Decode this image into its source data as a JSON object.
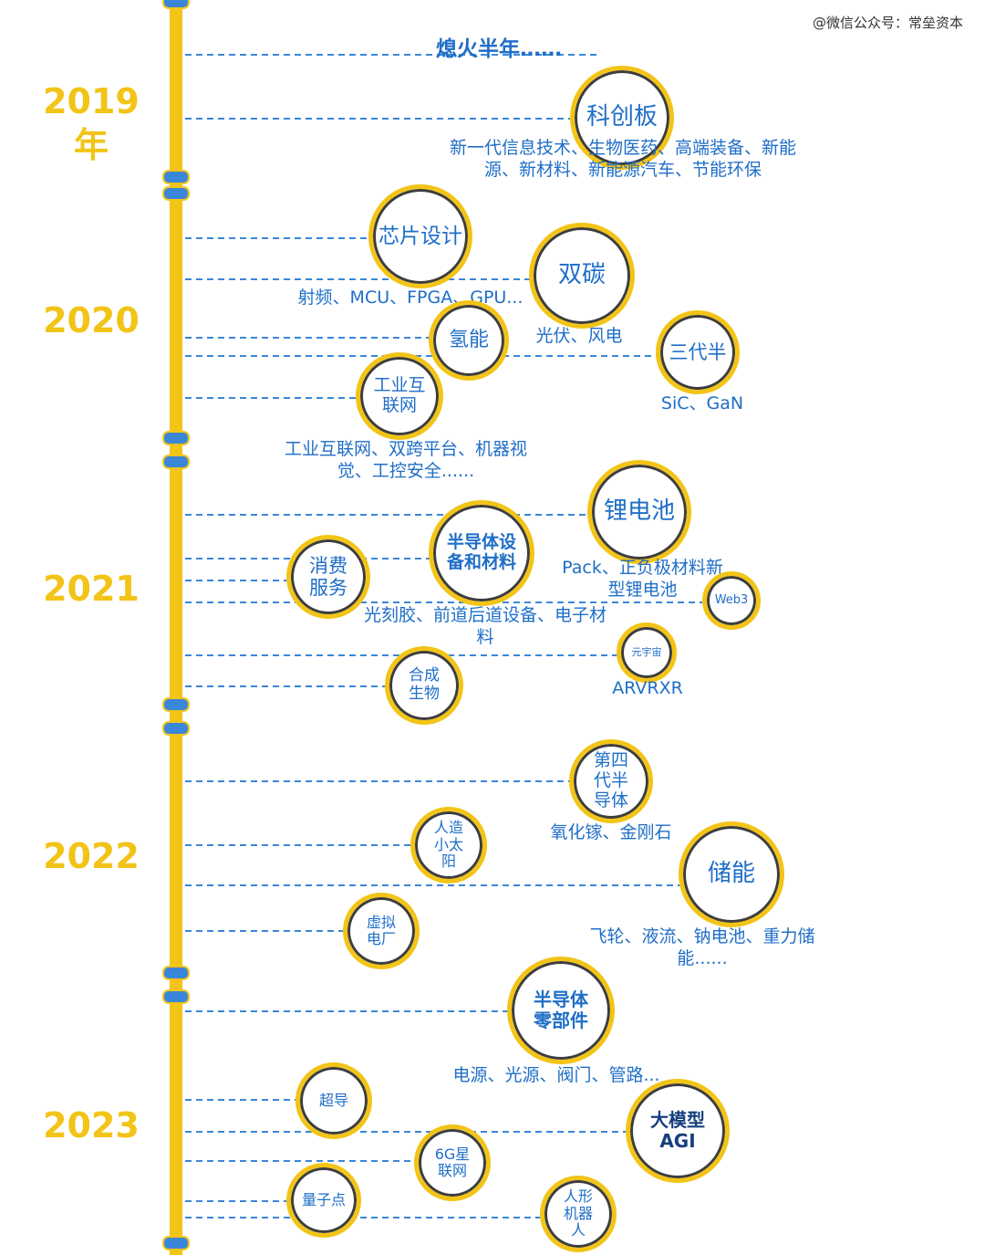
{
  "watermark": "@微信公众号：常垒资本",
  "title": "熄火半年……",
  "years": [
    "2019",
    "年",
    "2020",
    "2021",
    "2022",
    "2023"
  ],
  "circles": {
    "kechuangban": "科创板",
    "chip_design": "芯片设计",
    "double_carbon": "双碳",
    "hydrogen": "氢能",
    "third_gen": "三代半",
    "industrial_net": "工业互联网",
    "li_battery": "锂电池",
    "semi_equip": "半导体设备和材料",
    "consumer_service": "消费服务",
    "web3": "Web3",
    "metaverse": "元宇宙",
    "synbio": "合成生物",
    "fourth_gen": "第四代半导体",
    "artificial_sun": "人造小太阳",
    "energy_storage": "储能",
    "virtual_plant": "虚拟电厂",
    "semi_parts": "半导体零部件",
    "superconduct": "超导",
    "large_model": "大模型AGI",
    "six_g": "6G星联网",
    "quantum_dot": "量子点",
    "humanoid": "人形机器人"
  },
  "descriptions": {
    "kechuangban": "新一代信息技术、生物医药、高端装备、新能源、新材料、新能源汽车、节能环保",
    "chip_design": "射频、MCU、FPGA、GPU...",
    "double_carbon": "光伏、风电",
    "third_gen": "SiC、GaN",
    "industrial_net": "工业互联网、双跨平台、机器视觉、工控安全......",
    "li_battery": "Pack、正负极材料新型锂电池",
    "semi_equip": "光刻胶、前道后道设备、电子材料",
    "metaverse": "ARVRXR",
    "fourth_gen": "氧化镓、金刚石",
    "energy_storage": "飞轮、液流、钠电池、重力储能......",
    "semi_parts": "电源、光源、阀门、管路..."
  },
  "colors": {
    "axis": "#f2c417",
    "text": "#1f6ec7",
    "year": "#f2c417",
    "dash": "#3a86d8"
  }
}
